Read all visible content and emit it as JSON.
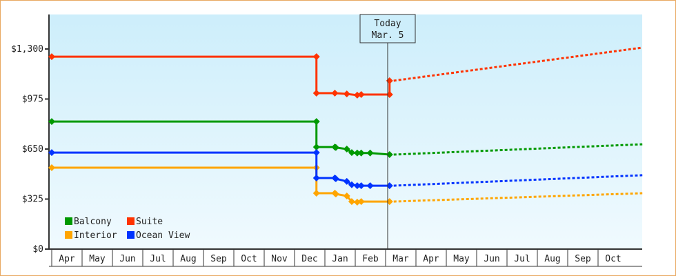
{
  "chart_data": {
    "type": "line",
    "title": "",
    "xlabel": "",
    "ylabel": "",
    "ylim": [
      0,
      1300
    ],
    "y_ticks": [
      "$0",
      "$325",
      "$650",
      "$975",
      "$1,300"
    ],
    "y_tick_values": [
      0,
      325,
      650,
      975,
      1300
    ],
    "x_ticks": [
      "Apr",
      "May",
      "Jun",
      "Jul",
      "Aug",
      "Sep",
      "Oct",
      "Nov",
      "Dec",
      "Jan",
      "Feb",
      "Mar",
      "Apr",
      "May",
      "Jun",
      "Jul",
      "Aug",
      "Sep",
      "Oct"
    ],
    "grid": false,
    "legend_position": "bottom-left",
    "today": {
      "label": "Today",
      "date": "Mar. 5"
    },
    "line_style": "step (history), dotted (projection)",
    "series": [
      {
        "name": "Balcony",
        "color": "#009900",
        "history": [
          [
            "Apr 1",
            829
          ],
          [
            "Dec 23",
            829
          ],
          [
            "Dec 23",
            663
          ],
          [
            "Jan 11",
            663
          ],
          [
            "Jan 12",
            660
          ],
          [
            "Jan 23",
            650
          ],
          [
            "Jan 28",
            627
          ],
          [
            "Feb 3",
            624
          ],
          [
            "Feb 7",
            624
          ],
          [
            "Feb 16",
            624
          ],
          [
            "Mar 5",
            614
          ]
        ],
        "projection": [
          [
            "Mar 5",
            614
          ],
          [
            "Nov 15",
            681
          ]
        ]
      },
      {
        "name": "Suite",
        "color": "#ff3300",
        "history": [
          [
            "Apr 1",
            1250
          ],
          [
            "Dec 23",
            1250
          ],
          [
            "Dec 23",
            1013
          ],
          [
            "Jan 11",
            1013
          ],
          [
            "Jan 23",
            1008
          ],
          [
            "Feb 3",
            1000
          ],
          [
            "Feb 7",
            1004
          ],
          [
            "Mar 5",
            1004
          ],
          [
            "Mar 5",
            1094
          ]
        ],
        "projection": [
          [
            "Mar 5",
            1094
          ],
          [
            "Nov 15",
            1309
          ]
        ]
      },
      {
        "name": "Interior",
        "color": "#ffa500",
        "history": [
          [
            "Apr 1",
            529
          ],
          [
            "Dec 23",
            529
          ],
          [
            "Dec 23",
            363
          ],
          [
            "Jan 11",
            363
          ],
          [
            "Jan 12",
            358
          ],
          [
            "Jan 23",
            345
          ],
          [
            "Jan 28",
            309
          ],
          [
            "Feb 3",
            305
          ],
          [
            "Feb 7",
            309
          ],
          [
            "Mar 5",
            309
          ]
        ],
        "projection": [
          [
            "Mar 5",
            309
          ],
          [
            "Nov 15",
            363
          ]
        ]
      },
      {
        "name": "Ocean View",
        "color": "#0033ff",
        "history": [
          [
            "Apr 1",
            627
          ],
          [
            "Dec 23",
            627
          ],
          [
            "Dec 23",
            462
          ],
          [
            "Jan 11",
            462
          ],
          [
            "Jan 12",
            457
          ],
          [
            "Jan 23",
            440
          ],
          [
            "Jan 28",
            418
          ],
          [
            "Feb 3",
            412
          ],
          [
            "Feb 7",
            412
          ],
          [
            "Feb 16",
            412
          ],
          [
            "Mar 5",
            412
          ]
        ],
        "projection": [
          [
            "Mar 5",
            412
          ],
          [
            "Nov 15",
            480
          ]
        ]
      }
    ]
  }
}
